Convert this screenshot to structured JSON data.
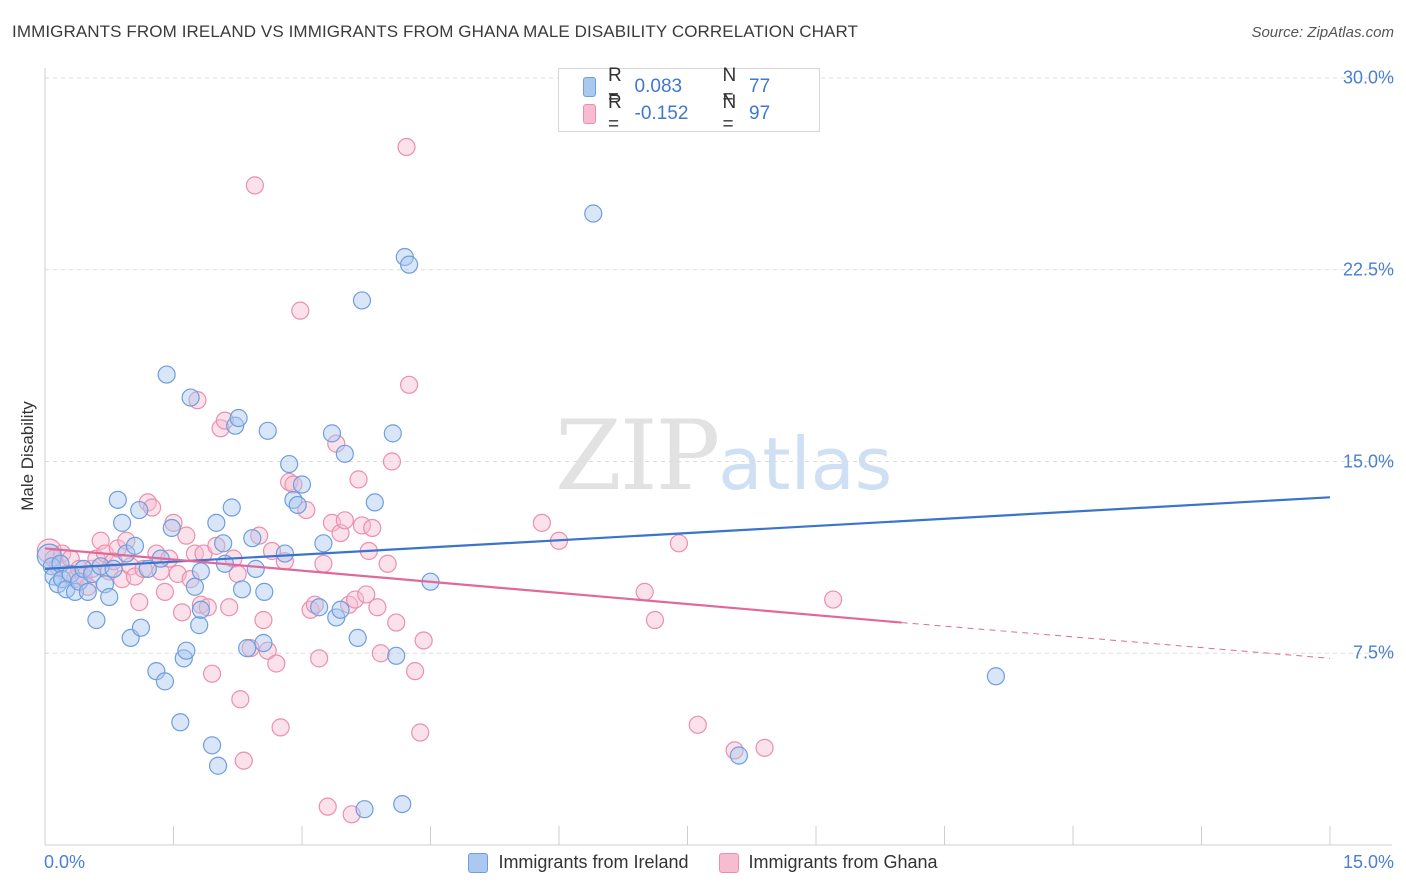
{
  "header": {
    "title": "IMMIGRANTS FROM IRELAND VS IMMIGRANTS FROM GHANA MALE DISABILITY CORRELATION CHART",
    "source": "Source: ZipAtlas.com"
  },
  "watermark": {
    "zip": "ZIP",
    "atlas": "atlas"
  },
  "legend": {
    "ireland": {
      "r_label": "R =",
      "r_value": "0.083",
      "n_label": "N =",
      "n_value": "77"
    },
    "ghana": {
      "r_label": "R =",
      "r_value": "-0.152",
      "n_label": "N =",
      "n_value": "97"
    }
  },
  "colors": {
    "ireland_fill": "#aac8f0",
    "ireland_stroke": "#6e9ee0",
    "ireland_line": "#3a74cc",
    "ghana_fill": "#f7bcd0",
    "ghana_stroke": "#eb8fae",
    "ghana_line": "#e0699a"
  },
  "chart_data": {
    "type": "scatter",
    "title": "IMMIGRANTS FROM IRELAND VS IMMIGRANTS FROM GHANA MALE DISABILITY CORRELATION CHART",
    "ylabel": "Male Disability",
    "xlabel": "",
    "xlim": [
      0,
      15
    ],
    "ylim": [
      0,
      30
    ],
    "x_tick_labels": [
      "0.0%",
      "15.0%"
    ],
    "y_ticks": [
      7.5,
      15,
      22.5,
      30
    ],
    "y_tick_labels": [
      "7.5%",
      "15.0%",
      "22.5%",
      "30.0%"
    ],
    "grid": true,
    "legend_placement": "bottom",
    "series": [
      {
        "name": "Immigrants from Ireland",
        "trend": {
          "x": [
            0.0,
            15.0
          ],
          "y": [
            10.8,
            13.6
          ]
        },
        "points": [
          [
            0.05,
            11.3
          ],
          [
            0.08,
            10.9
          ],
          [
            0.1,
            10.5
          ],
          [
            0.15,
            10.2
          ],
          [
            0.18,
            11.0
          ],
          [
            0.2,
            10.4
          ],
          [
            0.25,
            10.0
          ],
          [
            0.3,
            10.6
          ],
          [
            0.35,
            9.9
          ],
          [
            0.4,
            10.3
          ],
          [
            0.45,
            10.8
          ],
          [
            0.5,
            9.9
          ],
          [
            0.55,
            10.6
          ],
          [
            0.6,
            8.8
          ],
          [
            0.65,
            10.9
          ],
          [
            0.7,
            10.2
          ],
          [
            0.75,
            9.7
          ],
          [
            0.8,
            10.8
          ],
          [
            0.85,
            13.5
          ],
          [
            0.9,
            12.6
          ],
          [
            0.95,
            11.4
          ],
          [
            1.0,
            8.1
          ],
          [
            1.05,
            11.7
          ],
          [
            1.1,
            13.1
          ],
          [
            1.12,
            8.5
          ],
          [
            1.2,
            10.8
          ],
          [
            1.3,
            6.8
          ],
          [
            1.35,
            11.2
          ],
          [
            1.4,
            6.4
          ],
          [
            1.42,
            18.4
          ],
          [
            1.48,
            12.4
          ],
          [
            1.58,
            4.8
          ],
          [
            1.62,
            7.3
          ],
          [
            1.65,
            7.6
          ],
          [
            1.7,
            17.5
          ],
          [
            1.75,
            10.1
          ],
          [
            1.8,
            8.6
          ],
          [
            1.82,
            9.2
          ],
          [
            1.82,
            10.7
          ],
          [
            1.95,
            3.9
          ],
          [
            2.0,
            12.6
          ],
          [
            2.02,
            3.1
          ],
          [
            2.08,
            11.8
          ],
          [
            2.1,
            11.0
          ],
          [
            2.18,
            13.2
          ],
          [
            2.22,
            16.4
          ],
          [
            2.26,
            16.7
          ],
          [
            2.3,
            10.0
          ],
          [
            2.36,
            7.7
          ],
          [
            2.42,
            12.0
          ],
          [
            2.46,
            10.8
          ],
          [
            2.55,
            7.9
          ],
          [
            2.56,
            9.9
          ],
          [
            2.6,
            16.2
          ],
          [
            2.8,
            11.4
          ],
          [
            2.85,
            14.9
          ],
          [
            2.9,
            13.5
          ],
          [
            2.95,
            13.3
          ],
          [
            3.0,
            14.1
          ],
          [
            3.2,
            9.3
          ],
          [
            3.25,
            11.8
          ],
          [
            3.35,
            16.1
          ],
          [
            3.4,
            8.9
          ],
          [
            3.45,
            9.2
          ],
          [
            3.5,
            15.3
          ],
          [
            3.65,
            8.1
          ],
          [
            3.7,
            21.3
          ],
          [
            3.73,
            1.4
          ],
          [
            3.85,
            13.4
          ],
          [
            4.06,
            16.1
          ],
          [
            4.1,
            7.4
          ],
          [
            4.17,
            1.6
          ],
          [
            4.2,
            23.0
          ],
          [
            4.25,
            22.7
          ],
          [
            4.5,
            10.3
          ],
          [
            6.4,
            24.7
          ],
          [
            8.1,
            3.5
          ],
          [
            11.1,
            6.6
          ]
        ]
      },
      {
        "name": "Immigrants from Ghana",
        "trend": {
          "x": [
            0.0,
            10.0
          ],
          "y": [
            11.6,
            8.7
          ]
        },
        "trend_extension": {
          "x": [
            10.0,
            15.0
          ],
          "y": [
            8.7,
            7.3
          ]
        },
        "points": [
          [
            0.05,
            11.5
          ],
          [
            0.1,
            11.2
          ],
          [
            0.15,
            10.9
          ],
          [
            0.2,
            11.4
          ],
          [
            0.25,
            10.6
          ],
          [
            0.3,
            11.2
          ],
          [
            0.35,
            10.4
          ],
          [
            0.4,
            10.8
          ],
          [
            0.45,
            10.5
          ],
          [
            0.5,
            10.1
          ],
          [
            0.55,
            10.8
          ],
          [
            0.6,
            11.2
          ],
          [
            0.65,
            11.9
          ],
          [
            0.7,
            11.4
          ],
          [
            0.75,
            10.7
          ],
          [
            0.8,
            11.1
          ],
          [
            0.85,
            11.6
          ],
          [
            0.9,
            10.4
          ],
          [
            0.95,
            11.9
          ],
          [
            1.0,
            10.9
          ],
          [
            1.05,
            10.5
          ],
          [
            1.1,
            9.5
          ],
          [
            1.15,
            10.8
          ],
          [
            1.2,
            13.4
          ],
          [
            1.25,
            13.2
          ],
          [
            1.3,
            11.4
          ],
          [
            1.35,
            10.7
          ],
          [
            1.4,
            9.9
          ],
          [
            1.45,
            11.2
          ],
          [
            1.5,
            12.6
          ],
          [
            1.55,
            10.6
          ],
          [
            1.6,
            9.1
          ],
          [
            1.65,
            12.1
          ],
          [
            1.7,
            10.4
          ],
          [
            1.75,
            11.4
          ],
          [
            1.78,
            17.4
          ],
          [
            1.82,
            9.4
          ],
          [
            1.85,
            11.4
          ],
          [
            1.9,
            9.3
          ],
          [
            1.95,
            6.7
          ],
          [
            2.0,
            11.7
          ],
          [
            2.05,
            16.3
          ],
          [
            2.1,
            16.6
          ],
          [
            2.15,
            9.3
          ],
          [
            2.2,
            11.2
          ],
          [
            2.25,
            10.6
          ],
          [
            2.28,
            5.7
          ],
          [
            2.32,
            3.3
          ],
          [
            2.4,
            7.7
          ],
          [
            2.45,
            25.8
          ],
          [
            2.5,
            12.1
          ],
          [
            2.55,
            8.8
          ],
          [
            2.6,
            7.6
          ],
          [
            2.65,
            11.5
          ],
          [
            2.7,
            7.1
          ],
          [
            2.75,
            4.6
          ],
          [
            2.8,
            11.1
          ],
          [
            2.85,
            14.2
          ],
          [
            2.9,
            14.1
          ],
          [
            2.98,
            20.9
          ],
          [
            3.05,
            13.1
          ],
          [
            3.1,
            9.2
          ],
          [
            3.15,
            9.4
          ],
          [
            3.2,
            7.3
          ],
          [
            3.25,
            11.0
          ],
          [
            3.3,
            1.5
          ],
          [
            3.35,
            12.6
          ],
          [
            3.4,
            15.7
          ],
          [
            3.45,
            12.2
          ],
          [
            3.5,
            12.7
          ],
          [
            3.55,
            9.4
          ],
          [
            3.58,
            1.2
          ],
          [
            3.62,
            9.6
          ],
          [
            3.66,
            14.3
          ],
          [
            3.7,
            12.5
          ],
          [
            3.75,
            9.8
          ],
          [
            3.78,
            11.5
          ],
          [
            3.82,
            12.4
          ],
          [
            3.88,
            9.3
          ],
          [
            3.92,
            7.5
          ],
          [
            4.0,
            11.0
          ],
          [
            4.05,
            15.0
          ],
          [
            4.1,
            8.7
          ],
          [
            4.22,
            27.3
          ],
          [
            4.25,
            18.0
          ],
          [
            4.32,
            6.8
          ],
          [
            4.38,
            4.4
          ],
          [
            4.42,
            8.0
          ],
          [
            5.8,
            12.6
          ],
          [
            6.0,
            11.9
          ],
          [
            7.0,
            9.9
          ],
          [
            7.12,
            8.8
          ],
          [
            7.4,
            11.8
          ],
          [
            7.62,
            4.7
          ],
          [
            8.05,
            3.7
          ],
          [
            8.4,
            3.8
          ],
          [
            9.2,
            9.6
          ]
        ]
      }
    ]
  },
  "bottom_legend": {
    "ireland_label": "Immigrants from Ireland",
    "ghana_label": "Immigrants from Ghana"
  },
  "axes": {
    "x_min_label": "0.0%",
    "x_max_label": "15.0%",
    "y_axis_title": "Male Disability"
  }
}
